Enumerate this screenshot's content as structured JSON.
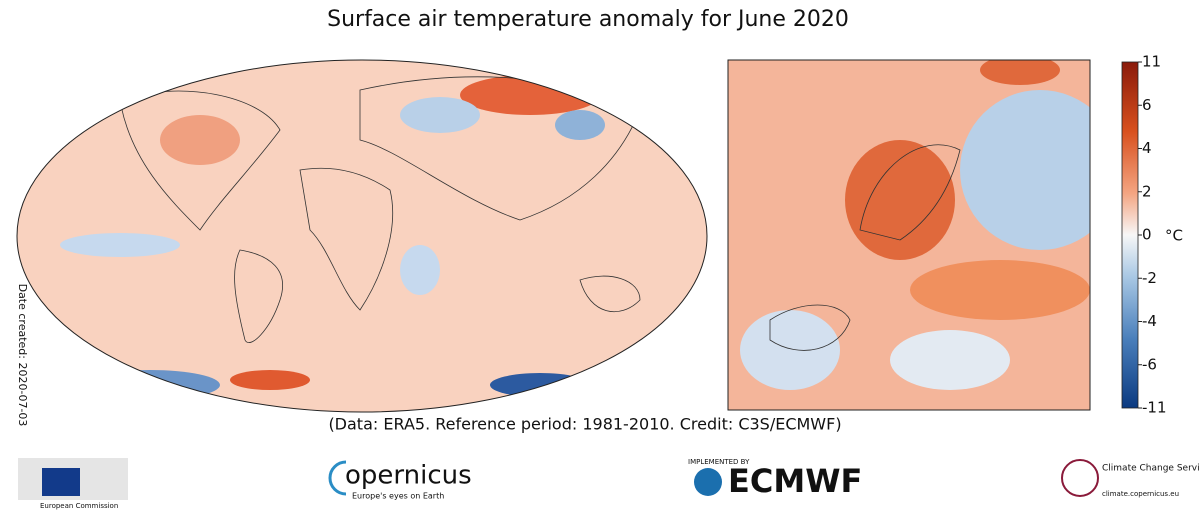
{
  "title": "Surface air temperature anomaly for June 2020",
  "credit": "(Data: ERA5.  Reference period: 1981-2010.  Credit: C3S/ECMWF)",
  "date_created": "Date created: 2020-07-03",
  "colorbar": {
    "unit": "°C",
    "ticks": [
      11,
      6,
      4,
      2,
      0,
      -2,
      -4,
      -6,
      -11
    ]
  },
  "logos": {
    "ec": "European Commission",
    "copernicus": "opernicus",
    "copernicus_tagline": "Europe's eyes on Earth",
    "ecmwf_top": "IMPLEMENTED BY",
    "ecmwf": "ECMWF",
    "c3s": "Climate Change Service",
    "c3s_url": "climate.copernicus.eu"
  }
}
